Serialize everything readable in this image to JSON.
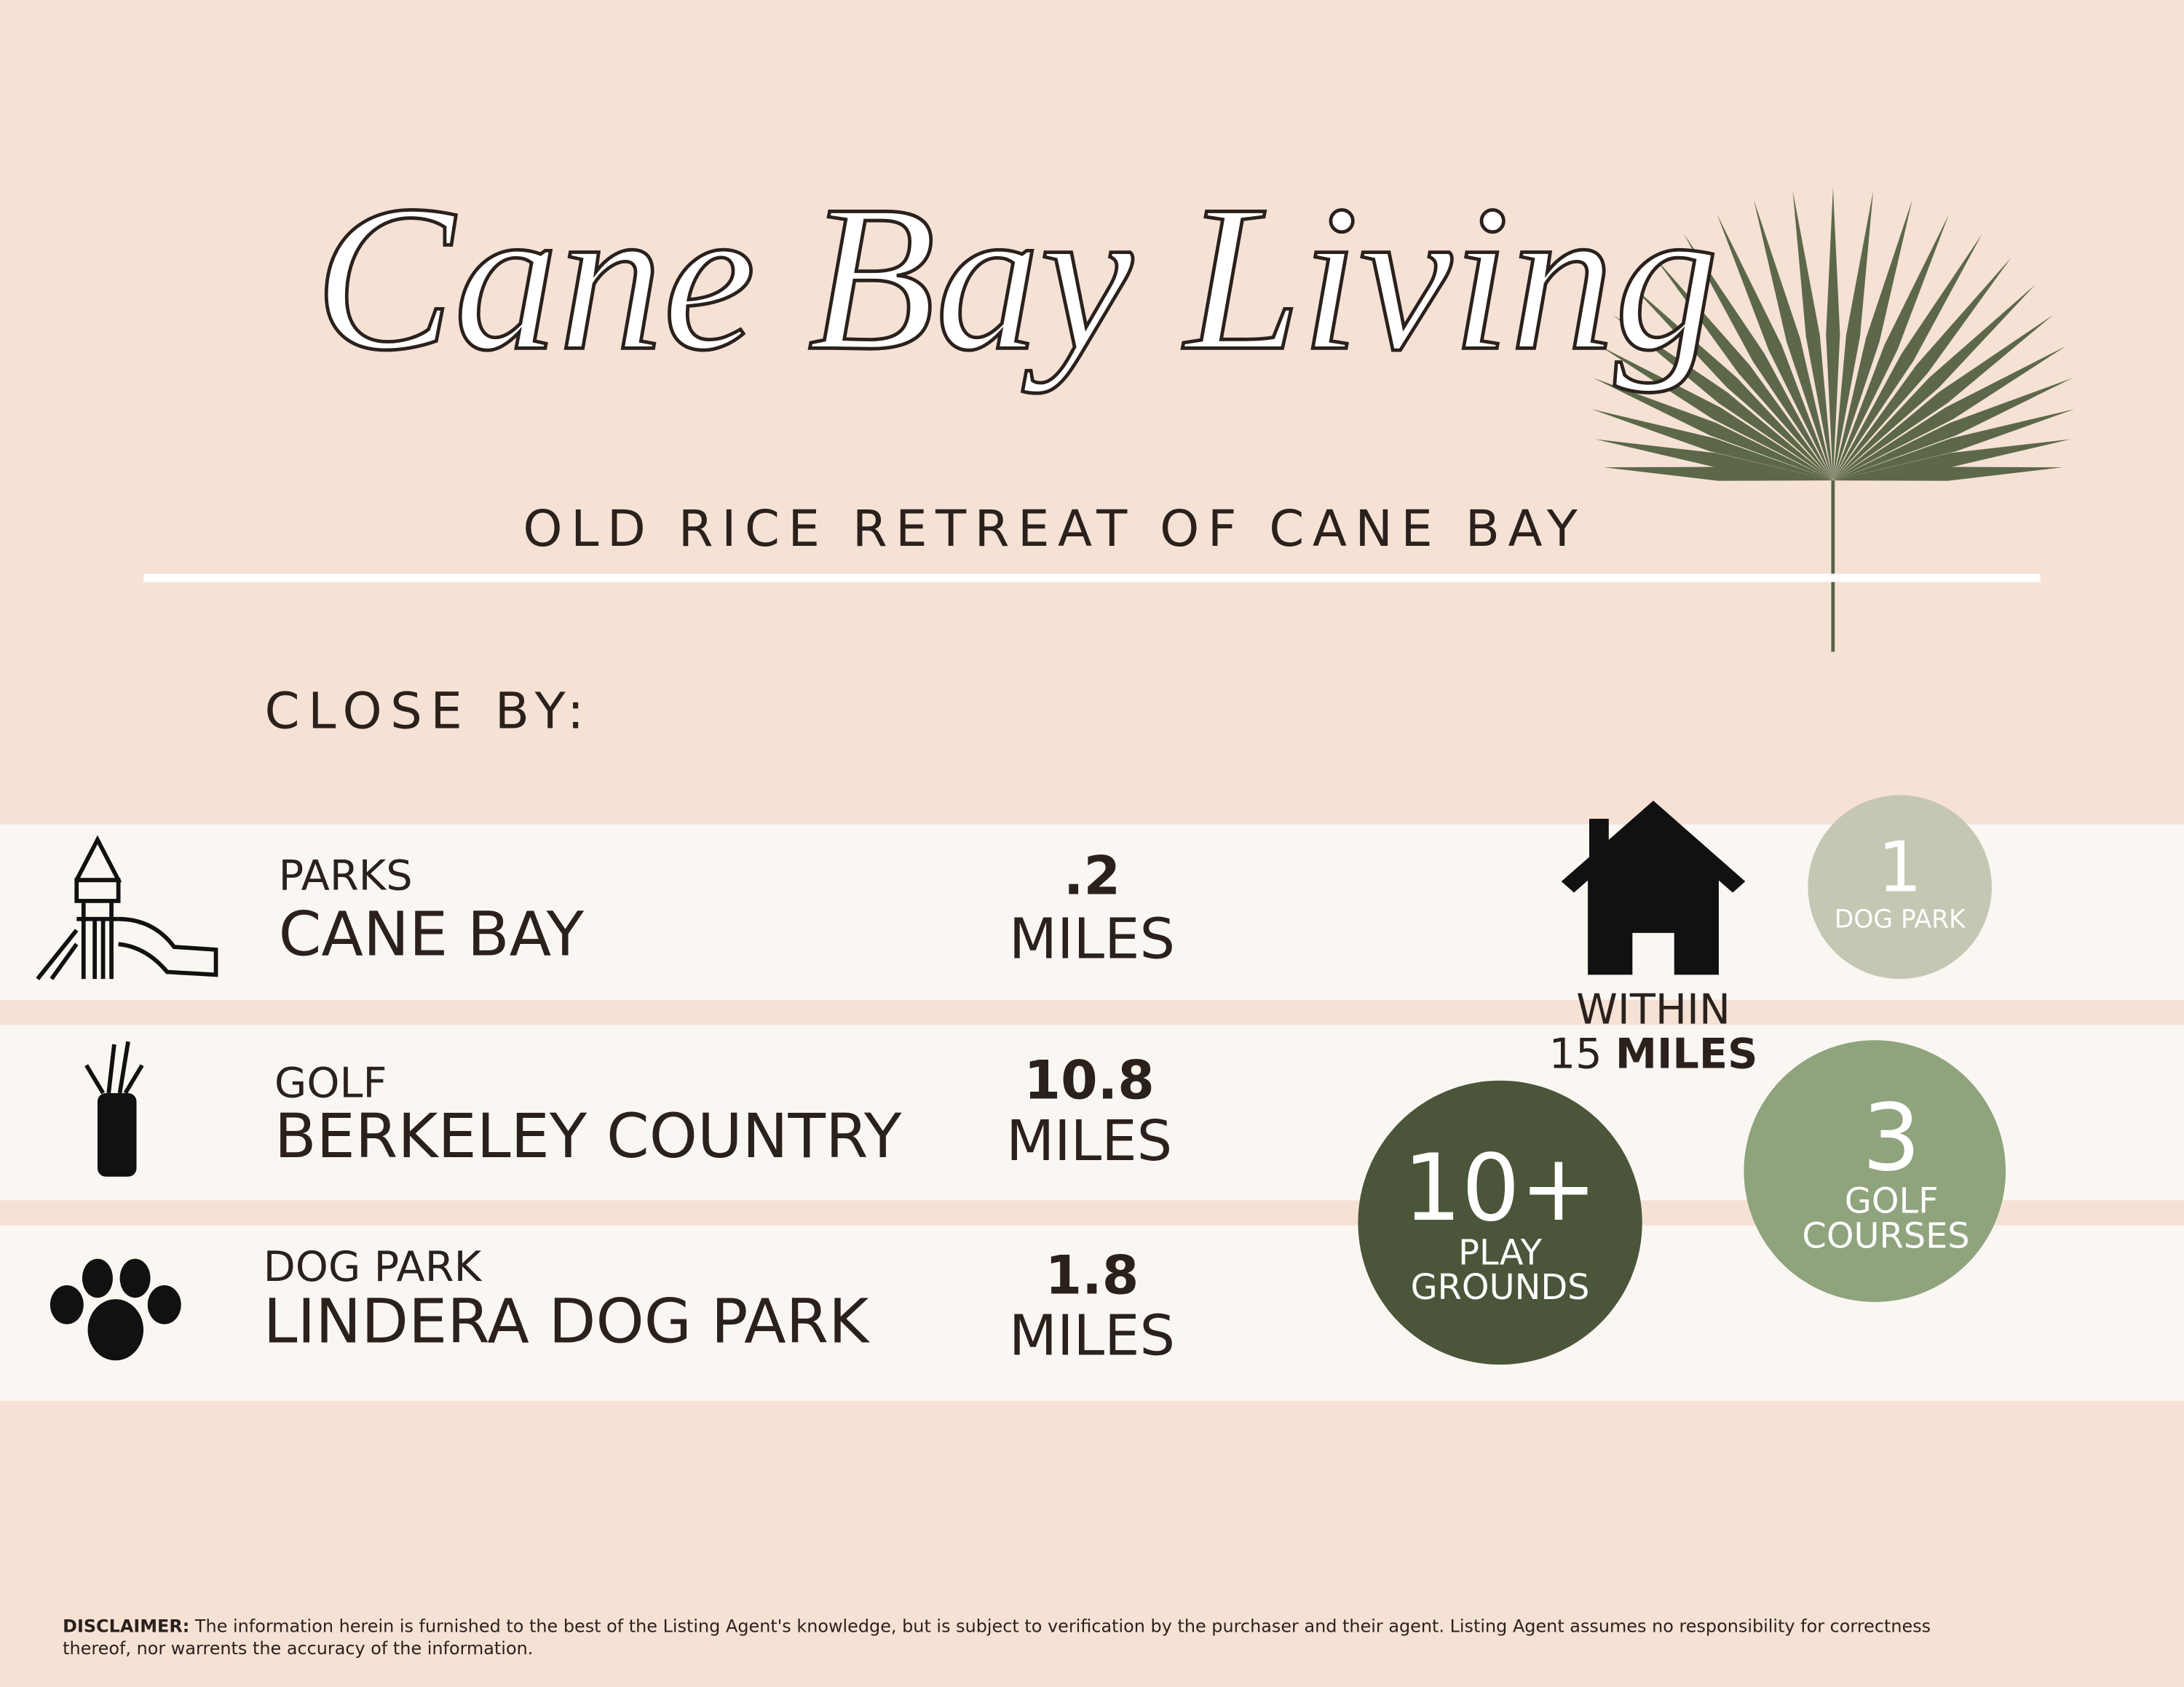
{
  "header": {
    "title": "Cane Bay Living",
    "subtitle": "OLD RICE RETREAT OF CANE BAY"
  },
  "section_title": "CLOSE BY:",
  "rows": [
    {
      "category": "PARKS",
      "name": "CANE BAY",
      "distance": ".2",
      "unit": "MILES"
    },
    {
      "category": "GOLF",
      "name": "BERKELEY COUNTRY",
      "distance": "10.8",
      "unit": "MILES"
    },
    {
      "category": "DOG PARK",
      "name": "LINDERA DOG PARK",
      "distance": "1.8",
      "unit": "MILES"
    }
  ],
  "within": {
    "label": "WITHIN",
    "number": "15",
    "unit": "MILES"
  },
  "stats": [
    {
      "number": "1",
      "lines": [
        "DOG PARK"
      ]
    },
    {
      "number": "3",
      "lines": [
        "GOLF",
        "COURSES"
      ]
    },
    {
      "number": "10+",
      "lines": [
        "PLAY",
        "GROUNDS"
      ]
    }
  ],
  "disclaimer": {
    "label": "DISCLAIMER:",
    "lines": [
      "The information herein is furnished to the best of the Listing Agent's knowledge, but is subject to verification by the purchaser and their agent. Listing Agent assumes no responsibility for correctness",
      "thereof, nor warrents the accuracy of the information."
    ]
  }
}
